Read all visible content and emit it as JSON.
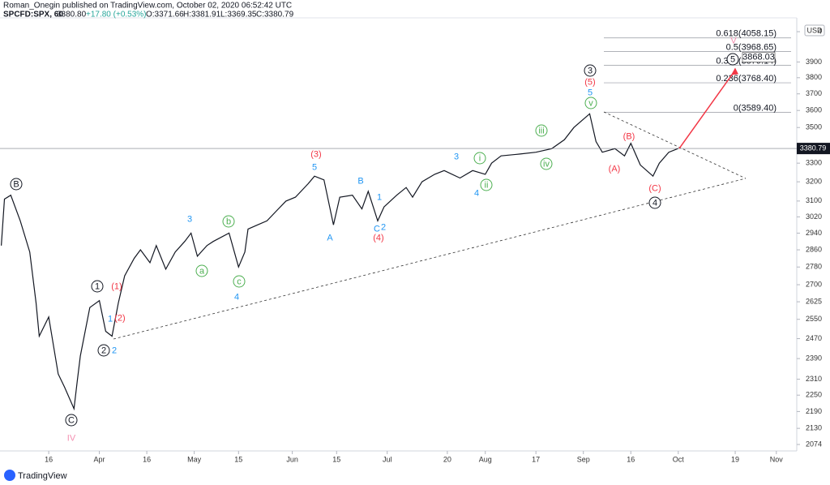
{
  "chart_data": {
    "type": "line",
    "publisher": "Roman_Onegin published on TradingView.com, October 02, 2020 06:52:42 UTC",
    "symbol": "SPCFD:SPX, 60",
    "quote": "3380.80",
    "change": "+17.80 (+0.53%)",
    "ohlc": [
      "O:3371.66",
      "H:3381.91",
      "L:3369.35",
      "C:3380.79"
    ],
    "currency": "USD",
    "brand": "TradingView",
    "log_scale": true,
    "line_color": "#131722",
    "x": [
      61,
      62,
      64,
      67,
      70,
      72,
      73,
      76,
      79,
      81,
      84,
      85,
      86,
      89,
      92,
      94,
      96,
      98,
      100,
      103,
      105,
      108,
      110,
      113,
      116,
      119,
      121,
      123,
      126,
      128,
      133,
      136,
      138,
      139,
      142,
      145,
      148,
      151,
      154,
      158,
      160,
      163,
      166,
      168,
      172,
      175,
      177,
      180,
      182,
      186,
      189,
      191,
      194,
      198,
      201,
      206,
      210,
      214,
      216,
      219,
      225,
      230,
      235,
      239,
      242,
      247,
      249,
      251,
      255,
      258,
      260,
      263,
      267,
      269,
      272,
      275
    ],
    "values": [
      2880,
      3110,
      3130,
      3000,
      2850,
      2620,
      2480,
      2560,
      2330,
      2280,
      2200,
      2300,
      2400,
      2600,
      2630,
      2500,
      2480,
      2620,
      2740,
      2820,
      2860,
      2800,
      2880,
      2770,
      2850,
      2900,
      2940,
      2830,
      2880,
      2900,
      2940,
      2780,
      2850,
      2960,
      2980,
      3000,
      3050,
      3100,
      3120,
      3190,
      3230,
      3210,
      2980,
      3120,
      3130,
      3060,
      3150,
      3000,
      3070,
      3130,
      3170,
      3120,
      3200,
      3240,
      3260,
      3220,
      3260,
      3240,
      3300,
      3340,
      3350,
      3360,
      3380,
      3430,
      3500,
      3580,
      3420,
      3360,
      3380,
      3340,
      3410,
      3290,
      3230,
      3300,
      3360,
      3381
    ],
    "xlim": [
      60.6,
      312.2
    ],
    "xticks": [
      {
        "value": 76,
        "label": "16"
      },
      {
        "value": 92,
        "label": "Apr"
      },
      {
        "value": 107,
        "label": "16"
      },
      {
        "value": 122,
        "label": "May"
      },
      {
        "value": 136,
        "label": "15"
      },
      {
        "value": 153,
        "label": "Jun"
      },
      {
        "value": 167,
        "label": "15"
      },
      {
        "value": 183,
        "label": "Jul"
      },
      {
        "value": 202,
        "label": "20"
      },
      {
        "value": 214,
        "label": "Aug"
      },
      {
        "value": 230,
        "label": "17"
      },
      {
        "value": 245,
        "label": "Sep"
      },
      {
        "value": 260,
        "label": "16"
      },
      {
        "value": 275,
        "label": "Oct"
      },
      {
        "value": 293,
        "label": "19"
      },
      {
        "value": 306,
        "label": "Nov"
      }
    ],
    "ylim": [
      2052,
      4150
    ],
    "yticks": [
      2074,
      2130,
      2190,
      2250,
      2310,
      2390,
      2470,
      2550,
      2625,
      2700,
      2780,
      2860,
      2940,
      3020,
      3100,
      3200,
      3300,
      3500,
      3600,
      3700,
      3800,
      3900,
      {
        "value": 4100,
        "label": "4"
      }
    ],
    "last_price": 3380.79,
    "target": 3868.03,
    "fib_levels": [
      {
        "value": 4058.15,
        "label": "0.618(4058.15)"
      },
      {
        "value": 3968.65,
        "label": "0.5(3968.65)"
      },
      {
        "value": 3879.14,
        "label": "0.382(3879.14)"
      },
      {
        "value": 3768.4,
        "label": "0.236(3768.40)"
      },
      {
        "value": 3589.4,
        "label": "0(3589.40)"
      }
    ],
    "annotations": [
      {
        "text": "B",
        "color": "#131722",
        "circled": true
      },
      {
        "text": "1",
        "color": "#131722",
        "circled": true
      },
      {
        "text": "2",
        "color": "#131722",
        "circled": true
      },
      {
        "text": "C",
        "color": "#131722",
        "circled": true
      },
      {
        "text": "3",
        "color": "#131722",
        "circled": true
      },
      {
        "text": "4",
        "color": "#131722",
        "circled": true
      },
      {
        "text": "5",
        "color": "#131722",
        "circled": true
      },
      {
        "text": "(1)",
        "color": "#f23645",
        "circled": false
      },
      {
        "text": "(2)",
        "color": "#f23645",
        "circled": false
      },
      {
        "text": "(3)",
        "color": "#f23645",
        "circled": false
      },
      {
        "text": "(4)",
        "color": "#f23645",
        "circled": false
      },
      {
        "text": "(5)",
        "color": "#f23645",
        "circled": false
      },
      {
        "text": "(B)",
        "color": "#f23645",
        "circled": false
      },
      {
        "text": "(A)",
        "color": "#f23645",
        "circled": false
      },
      {
        "text": "(C)",
        "color": "#f23645",
        "circled": false
      },
      {
        "text": "1",
        "color": "#2196f3",
        "circled": false
      },
      {
        "text": "2",
        "color": "#2196f3",
        "circled": false
      },
      {
        "text": "3",
        "color": "#2196f3",
        "circled": false
      },
      {
        "text": "4",
        "color": "#2196f3",
        "circled": false
      },
      {
        "text": "5",
        "color": "#2196f3",
        "circled": false
      },
      {
        "text": "A",
        "color": "#2196f3",
        "circled": false
      },
      {
        "text": "B",
        "color": "#2196f3",
        "circled": false
      },
      {
        "text": "1",
        "color": "#2196f3",
        "circled": false
      },
      {
        "text": "C",
        "color": "#2196f3",
        "circled": false
      },
      {
        "text": "2",
        "color": "#2196f3",
        "circled": false
      },
      {
        "text": "3",
        "color": "#2196f3",
        "circled": false
      },
      {
        "text": "4",
        "color": "#2196f3",
        "circled": false
      },
      {
        "text": "5",
        "color": "#2196f3",
        "circled": false
      },
      {
        "text": "a",
        "color": "#4caf50",
        "circled": true
      },
      {
        "text": "b",
        "color": "#4caf50",
        "circled": true
      },
      {
        "text": "c",
        "color": "#4caf50",
        "circled": true
      },
      {
        "text": "i",
        "color": "#4caf50",
        "circled": true
      },
      {
        "text": "ii",
        "color": "#4caf50",
        "circled": true
      },
      {
        "text": "iii",
        "color": "#4caf50",
        "circled": true
      },
      {
        "text": "iv",
        "color": "#4caf50",
        "circled": true
      },
      {
        "text": "v",
        "color": "#4caf50",
        "circled": true
      },
      {
        "text": "IV",
        "color": "#f48fb1",
        "circled": false
      },
      {
        "text": "V",
        "color": "#f48fb1",
        "circled": false
      }
    ]
  }
}
